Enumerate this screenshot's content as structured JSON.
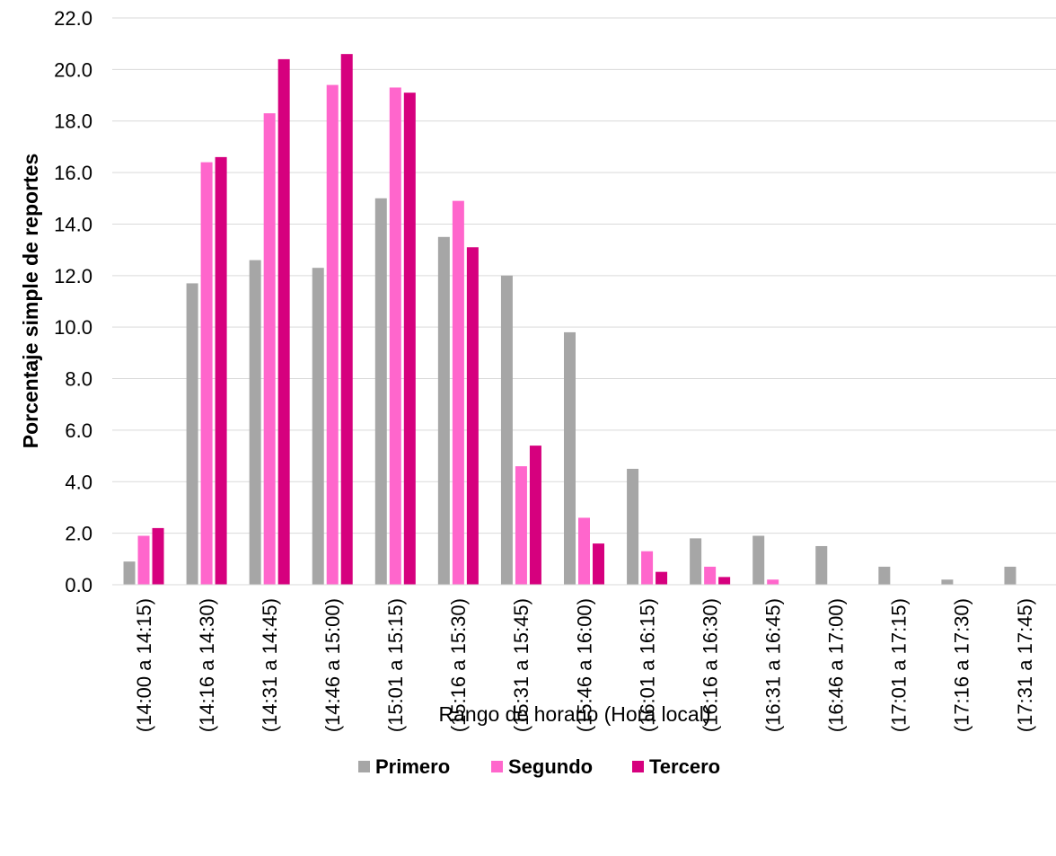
{
  "chart_data": {
    "type": "bar",
    "xlabel": "Rango de horario (Hora local)",
    "ylabel": "Porcentaje simple de reportes",
    "ylim": [
      0,
      22
    ],
    "y_ticks": [
      "0.0",
      "2.0",
      "4.0",
      "6.0",
      "8.0",
      "10.0",
      "12.0",
      "14.0",
      "16.0",
      "18.0",
      "20.0",
      "22.0"
    ],
    "grid": true,
    "legend_position": "bottom",
    "categories": [
      "(14:00 a 14:15)",
      "(14:16 a 14:30)",
      "(14:31 a 14:45)",
      "(14:46 a 15:00)",
      "(15:01 a 15:15)",
      "(15:16 a 15:30)",
      "(15:31 a 15:45)",
      "(15:46 a 16:00)",
      "(16:01 a 16:15)",
      "(16:16 a 16:30)",
      "(16:31 a 16:45)",
      "(16:46 a 17:00)",
      "(17:01 a 17:15)",
      "(17:16 a 17:30)",
      "(17:31 a 17:45)"
    ],
    "series": [
      {
        "name": "Primero",
        "color": "#a6a6a6",
        "values": [
          0.9,
          11.7,
          12.6,
          12.3,
          15.0,
          13.5,
          12.0,
          9.8,
          4.5,
          1.8,
          1.9,
          1.5,
          0.7,
          0.2,
          0.7
        ]
      },
      {
        "name": "Segundo",
        "color": "#ff66cc",
        "values": [
          1.9,
          16.4,
          18.3,
          19.4,
          19.3,
          14.9,
          4.6,
          2.6,
          1.3,
          0.7,
          0.2,
          0.0,
          0.0,
          0.0,
          0.0
        ]
      },
      {
        "name": "Tercero",
        "color": "#d6007e",
        "values": [
          2.2,
          16.6,
          20.4,
          20.6,
          19.1,
          13.1,
          5.4,
          1.6,
          0.5,
          0.3,
          0.0,
          0.0,
          0.0,
          0.0,
          0.0
        ]
      }
    ]
  }
}
